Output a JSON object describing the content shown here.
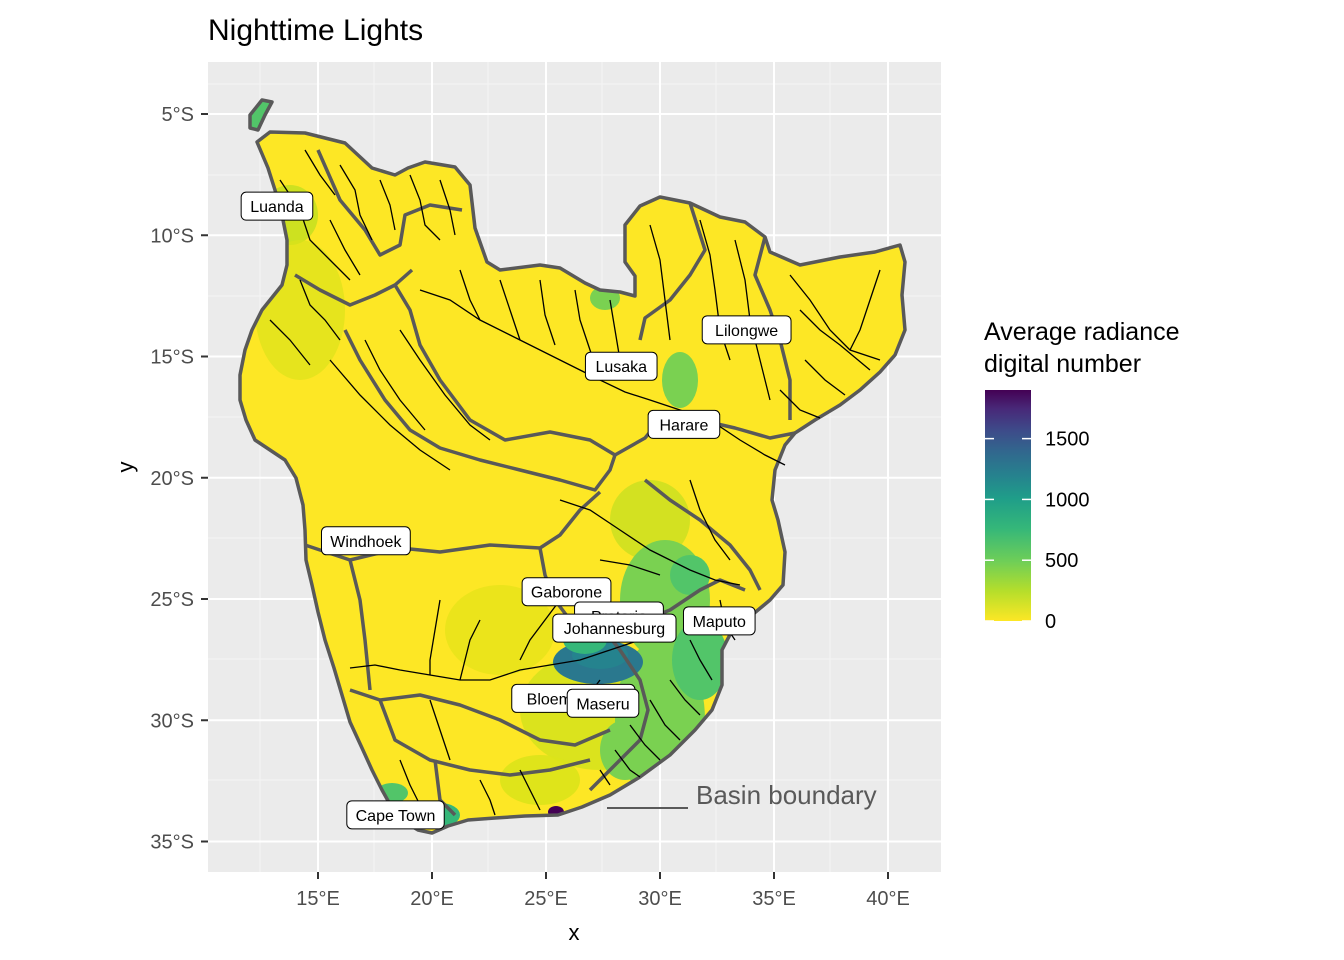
{
  "chart_data": {
    "type": "map",
    "title": "Nighttime Lights",
    "xlabel": "x",
    "ylabel": "y",
    "x_ticks": [
      "15°E",
      "20°E",
      "25°E",
      "30°E",
      "35°E",
      "40°E"
    ],
    "y_ticks": [
      "5°S",
      "10°S",
      "15°S",
      "20°S",
      "25°S",
      "30°S",
      "35°S"
    ],
    "x_tick_values": [
      15,
      20,
      25,
      30,
      35,
      40
    ],
    "y_tick_values": [
      -5,
      -10,
      -15,
      -20,
      -25,
      -30,
      -35
    ],
    "xlim": [
      10.3,
      42.4
    ],
    "ylim": [
      -36.3,
      -3.1
    ],
    "legend": {
      "title": "Average radiance\n digital number",
      "ticks": [
        "0",
        "500",
        "1000",
        "1500"
      ],
      "tick_values": [
        0,
        500,
        1000,
        1500
      ],
      "range": [
        0,
        1900
      ],
      "palette": [
        "#fde725",
        "#b5de2b",
        "#6ece58",
        "#35b779",
        "#1f9e89",
        "#26828e",
        "#31688e",
        "#3e4989",
        "#482878",
        "#440154"
      ]
    },
    "annotation": "Basin boundary",
    "cities": [
      {
        "name": "Luanda",
        "lon": 13.2,
        "lat": -8.8
      },
      {
        "name": "Lilongwe",
        "lon": 33.8,
        "lat": -13.9
      },
      {
        "name": "Lusaka",
        "lon": 28.3,
        "lat": -15.4
      },
      {
        "name": "Harare",
        "lon": 31.05,
        "lat": -17.8
      },
      {
        "name": "Windhoek",
        "lon": 17.1,
        "lat": -22.6
      },
      {
        "name": "Gaborone",
        "lon": 25.9,
        "lat": -24.7
      },
      {
        "name": "Pretoria",
        "lon": 28.2,
        "lat": -25.7
      },
      {
        "name": "Maputo",
        "lon": 32.6,
        "lat": -25.9
      },
      {
        "name": "Johannesburg",
        "lon": 28.0,
        "lat": -26.2
      },
      {
        "name": "Bloemfontein",
        "lon": 26.2,
        "lat": -29.1
      },
      {
        "name": "Maseru",
        "lon": 27.5,
        "lat": -29.3
      },
      {
        "name": "Cape Town",
        "lon": 18.4,
        "lat": -33.9
      }
    ]
  }
}
